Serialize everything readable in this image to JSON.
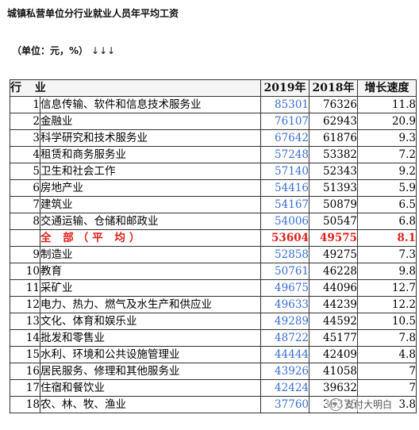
{
  "title": "城镇私营单位分行业就业人员年平均工资",
  "unit_note": "（单位：元，%）",
  "unit_arrows": "↓↓↓",
  "table": {
    "headers": {
      "industry": "行 业",
      "y2019": "2019年",
      "y2018": "2018年",
      "growth": "增长速度"
    },
    "rows": [
      {
        "idx": "1",
        "name": "信息传输、软件和信息技术服务业",
        "y2019": "85301",
        "y2018": "76326",
        "growth": "11.8"
      },
      {
        "idx": "2",
        "name": "金融业",
        "y2019": "76107",
        "y2018": "62943",
        "growth": "20.9"
      },
      {
        "idx": "3",
        "name": "科学研究和技术服务业",
        "y2019": "67642",
        "y2018": "61876",
        "growth": "9.3"
      },
      {
        "idx": "4",
        "name": "租赁和商务服务业",
        "y2019": "57248",
        "y2018": "53382",
        "growth": "7.2"
      },
      {
        "idx": "5",
        "name": "卫生和社会工作",
        "y2019": "57140",
        "y2018": "52343",
        "growth": "9.2"
      },
      {
        "idx": "6",
        "name": "房地产业",
        "y2019": "54416",
        "y2018": "51393",
        "growth": "5.9"
      },
      {
        "idx": "7",
        "name": "建筑业",
        "y2019": "54167",
        "y2018": "50879",
        "growth": "6.5"
      },
      {
        "idx": "8",
        "name": "交通运输、仓储和邮政业",
        "y2019": "54006",
        "y2018": "50547",
        "growth": "6.8"
      },
      {
        "idx": "",
        "name": "全 部（平 均）",
        "y2019": "53604",
        "y2018": "49575",
        "growth": "8.1",
        "highlight": true
      },
      {
        "idx": "9",
        "name": "制造业",
        "y2019": "52858",
        "y2018": "49275",
        "growth": "7.3"
      },
      {
        "idx": "10",
        "name": "教育",
        "y2019": "50761",
        "y2018": "46228",
        "growth": "9.8"
      },
      {
        "idx": "11",
        "name": "采矿业",
        "y2019": "49675",
        "y2018": "44096",
        "growth": "12.7"
      },
      {
        "idx": "12",
        "name": "电力、热力、燃气及水生产和供应业",
        "y2019": "49633",
        "y2018": "44239",
        "growth": "12.2"
      },
      {
        "idx": "13",
        "name": "文化、体育和娱乐业",
        "y2019": "49289",
        "y2018": "44592",
        "growth": "10.5"
      },
      {
        "idx": "14",
        "name": "批发和零售业",
        "y2019": "48722",
        "y2018": "45177",
        "growth": "7.8"
      },
      {
        "idx": "15",
        "name": "水利、环境和公共设施管理业",
        "y2019": "44444",
        "y2018": "42409",
        "growth": "4.8"
      },
      {
        "idx": "16",
        "name": "居民服务、修理和其他服务业",
        "y2019": "43926",
        "y2018": "41058",
        "growth": "7"
      },
      {
        "idx": "17",
        "name": "住宿和餐饮业",
        "y2019": "42424",
        "y2018": "39632",
        "growth": "7"
      },
      {
        "idx": "18",
        "name": "农、林、牧、渔业",
        "y2019": "37760",
        "y2018": "36375",
        "growth": "3.8"
      }
    ]
  },
  "watermark": {
    "text": "支付大明白",
    "icon": "wechat-icon"
  },
  "colors": {
    "header_2019_bg": "#f2c200",
    "value_2019": "#3a6fd8",
    "average_row": "#e0201a"
  }
}
